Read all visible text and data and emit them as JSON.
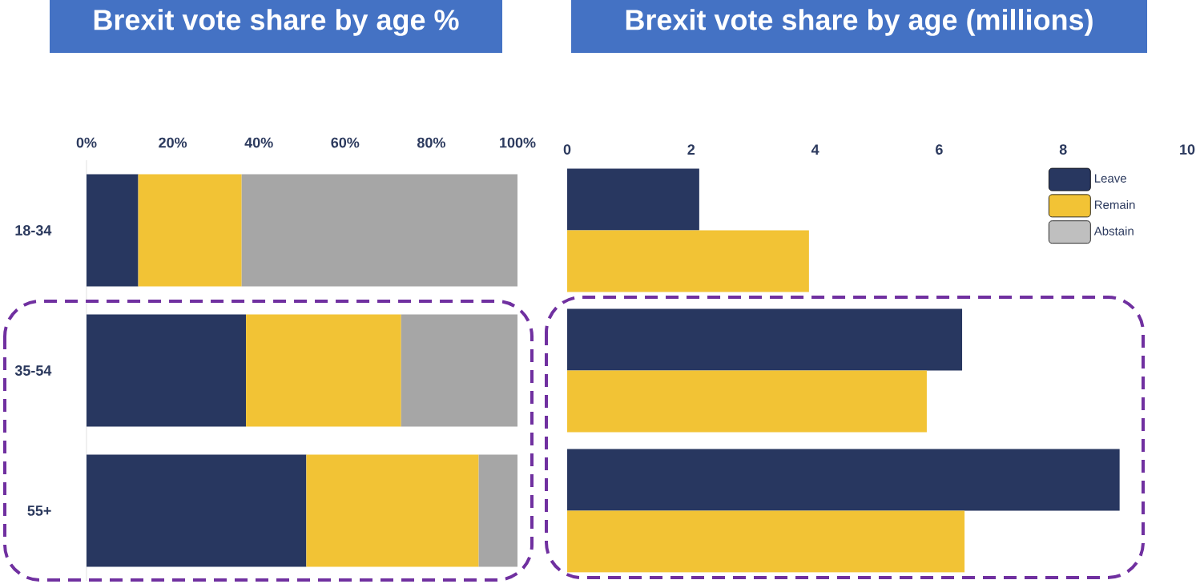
{
  "chart_data": [
    {
      "type": "bar",
      "title": "Brexit vote share by age %",
      "orientation": "horizontal",
      "stacked": true,
      "categories": [
        "18-34",
        "35-54",
        "55+"
      ],
      "series": [
        {
          "color": "#283760",
          "values": [
            12,
            37,
            51
          ]
        },
        {
          "color": "#f2c335",
          "values": [
            24,
            36,
            40
          ]
        },
        {
          "color": "#a6a6a6",
          "values": [
            64,
            27,
            9
          ]
        }
      ],
      "xlim": [
        0,
        100
      ],
      "xticks": [
        {
          "value": 0,
          "label": "0%"
        },
        {
          "value": 20,
          "label": "20%"
        },
        {
          "value": 40,
          "label": "40%"
        },
        {
          "value": 60,
          "label": "60%"
        },
        {
          "value": 80,
          "label": "80%"
        },
        {
          "value": 100,
          "label": "100%"
        }
      ]
    },
    {
      "type": "bar",
      "title": "Brexit vote share by age (millions)",
      "orientation": "horizontal",
      "categories": [
        null,
        null,
        null
      ],
      "series": [
        {
          "name": "Leave",
          "color": "#283760",
          "values": [
            2.13,
            6.37,
            8.91
          ]
        },
        {
          "name": "Remain",
          "color": "#f2c335",
          "values": [
            3.9,
            5.8,
            6.41
          ]
        },
        {
          "name": "Abstain",
          "color": "#bfbfbf",
          "values": [
            null,
            null,
            null
          ]
        }
      ],
      "xlim": [
        0,
        10
      ],
      "xticks": [
        0,
        2,
        4,
        6,
        8,
        10
      ],
      "tick_labels": "x",
      "legend": "top right"
    }
  ]
}
